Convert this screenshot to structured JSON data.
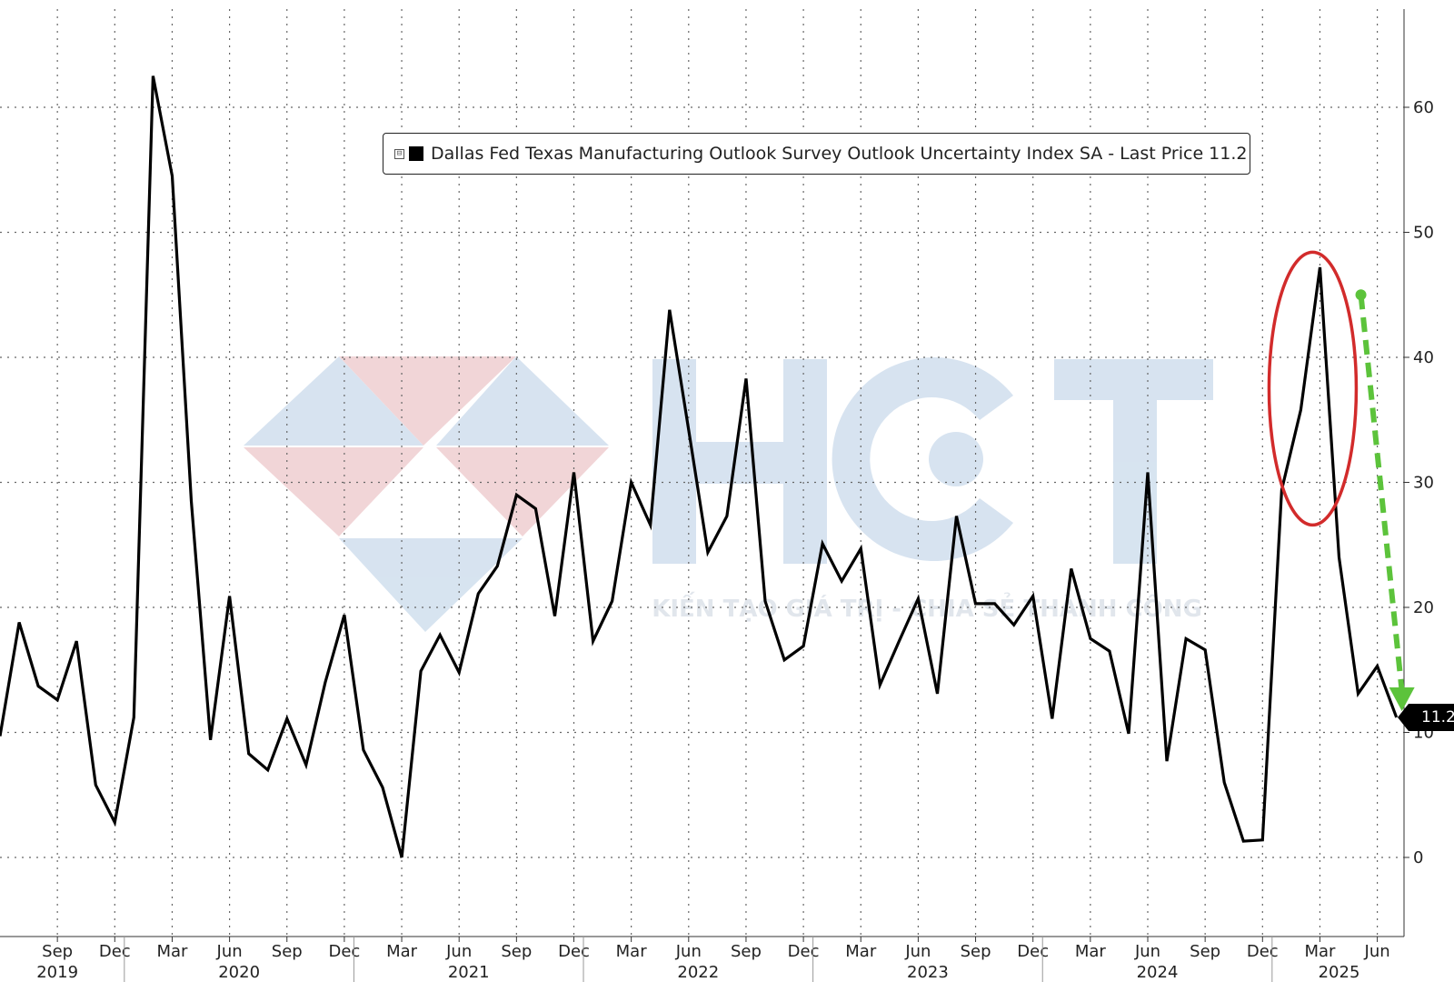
{
  "legend": {
    "toggle_icon": "collapse-icon",
    "label": "Dallas Fed Texas Manufacturing Outlook Survey Outlook Uncertainty Index SA - Last Price 11.2"
  },
  "last_value_label": "11.2",
  "watermark": {
    "brand": "HCT",
    "tagline": "KIẾN TẠO GIÁ TRỊ - CHIA SẺ THÀNH CÔNG"
  },
  "colors": {
    "line": "#000000",
    "highlight_ellipse": "#d22b2b",
    "trend_arrow": "#5cc33b",
    "grid": "#666666"
  },
  "chart_data": {
    "type": "line",
    "title": "",
    "xlabel": "",
    "ylabel": "",
    "ylim": [
      -5,
      68
    ],
    "yticks": [
      0,
      10,
      20,
      30,
      40,
      50,
      60
    ],
    "y_axis_side": "right",
    "grid": true,
    "legend_placement": "top-center",
    "x_start": "2019-06",
    "x_end": "2025-07",
    "month_ticks": [
      "Sep",
      "Dec",
      "Mar",
      "Jun",
      "Sep",
      "Dec",
      "Mar",
      "Jun",
      "Sep",
      "Dec",
      "Mar",
      "Jun",
      "Sep",
      "Dec",
      "Mar",
      "Jun",
      "Sep",
      "Dec",
      "Mar",
      "Jun",
      "Sep",
      "Dec",
      "Mar",
      "Jun"
    ],
    "year_labels": [
      "2019",
      "2020",
      "2021",
      "2022",
      "2023",
      "2024",
      "2025"
    ],
    "series": [
      {
        "x": [
          "2019-06",
          "2019-07",
          "2019-08",
          "2019-09",
          "2019-10",
          "2019-11",
          "2019-12",
          "2020-01",
          "2020-02",
          "2020-03",
          "2020-04",
          "2020-05",
          "2020-06",
          "2020-07",
          "2020-08",
          "2020-09",
          "2020-10",
          "2020-11",
          "2020-12",
          "2021-01",
          "2021-02",
          "2021-03",
          "2021-04",
          "2021-05",
          "2021-06",
          "2021-07",
          "2021-08",
          "2021-09",
          "2021-10",
          "2021-11",
          "2021-12",
          "2022-01",
          "2022-02",
          "2022-03",
          "2022-04",
          "2022-05",
          "2022-06",
          "2022-07",
          "2022-08",
          "2022-09",
          "2022-10",
          "2022-11",
          "2022-12",
          "2023-01",
          "2023-02",
          "2023-03",
          "2023-04",
          "2023-05",
          "2023-06",
          "2023-07",
          "2023-08",
          "2023-09",
          "2023-10",
          "2023-11",
          "2023-12",
          "2024-01",
          "2024-02",
          "2024-03",
          "2024-04",
          "2024-05",
          "2024-06",
          "2024-07",
          "2024-08",
          "2024-09",
          "2024-10",
          "2024-11",
          "2024-12",
          "2025-01",
          "2025-02",
          "2025-03",
          "2025-04",
          "2025-05",
          "2025-06",
          "2025-07"
        ],
        "values": [
          9.7,
          18.8,
          13.7,
          12.6,
          17.3,
          5.8,
          2.8,
          11.2,
          62.5,
          54.5,
          28.5,
          9.4,
          20.9,
          8.3,
          7.0,
          11.1,
          7.4,
          14.0,
          19.4,
          8.6,
          5.6,
          0.0,
          14.9,
          17.8,
          14.8,
          21.1,
          23.3,
          29.0,
          27.9,
          19.3,
          30.8,
          17.3,
          20.5,
          30.0,
          26.6,
          43.8,
          34.2,
          24.4,
          27.3,
          38.3,
          20.5,
          15.8,
          16.9,
          25.1,
          22.1,
          24.7,
          13.8,
          17.3,
          20.7,
          13.1,
          27.3,
          20.3,
          20.3,
          18.6,
          20.9,
          11.1,
          23.1,
          17.5,
          16.5,
          9.9,
          30.8,
          7.7,
          17.5,
          16.6,
          6.0,
          1.3,
          1.4,
          29.4,
          35.8,
          47.2,
          24.0,
          13.1,
          15.3,
          11.2
        ]
      }
    ],
    "annotations": [
      {
        "kind": "ellipse",
        "around": "2025-03",
        "color": "#d22b2b"
      },
      {
        "kind": "arrow",
        "from": [
          "2025-05",
          45.0
        ],
        "to": [
          "2025-07",
          12.0
        ],
        "color": "#5cc33b"
      }
    ]
  }
}
